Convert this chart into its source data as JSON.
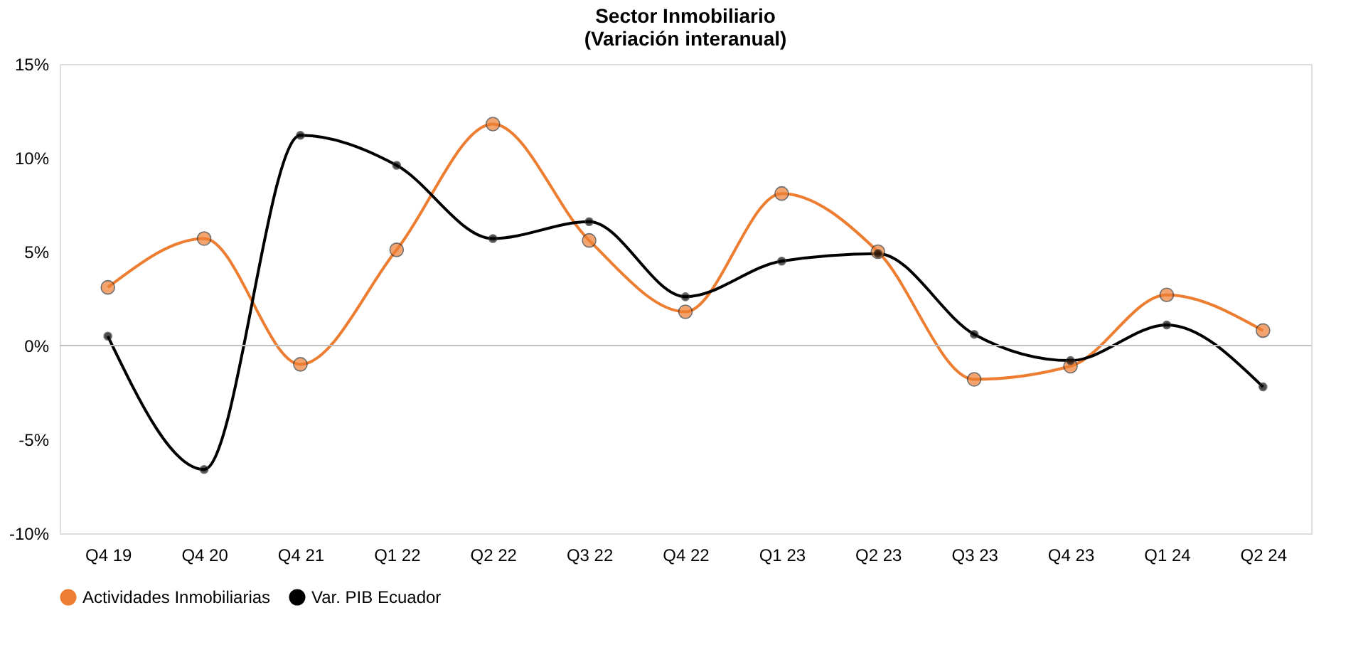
{
  "chart_data": {
    "type": "line",
    "title": "Sector Inmobiliario",
    "subtitle": "(Variación interanual)",
    "categories": [
      "Q4 19",
      "Q4 20",
      "Q4 21",
      "Q1 22",
      "Q2 22",
      "Q3 22",
      "Q4 22",
      "Q1 23",
      "Q2 23",
      "Q3 23",
      "Q4 23",
      "Q1 24",
      "Q2 24"
    ],
    "series": [
      {
        "name": "Actividades Inmobiliarias",
        "color": "#ed7d31",
        "values": [
          3.1,
          5.7,
          -1.0,
          5.1,
          11.8,
          5.6,
          1.8,
          8.1,
          5.0,
          -1.8,
          -1.1,
          2.7,
          0.8
        ]
      },
      {
        "name": "Var. PIB Ecuador",
        "color": "#000000",
        "values": [
          0.5,
          -6.6,
          11.2,
          9.6,
          5.7,
          6.6,
          2.6,
          4.5,
          4.9,
          0.6,
          -0.8,
          1.1,
          -2.2
        ]
      }
    ],
    "ylim": [
      -10,
      15
    ],
    "yticks": [
      {
        "value": -10,
        "label": "-10%"
      },
      {
        "value": -5,
        "label": "-5%"
      },
      {
        "value": 0,
        "label": "0%"
      },
      {
        "value": 5,
        "label": "5%"
      },
      {
        "value": 10,
        "label": "10%"
      },
      {
        "value": 15,
        "label": "15%"
      }
    ],
    "ref_lines": [
      {
        "axis": "y",
        "value": 0,
        "color": "#bfbfbf"
      }
    ],
    "grid": false,
    "legend": "bottom",
    "marker": "circle",
    "line_style": "solid"
  }
}
